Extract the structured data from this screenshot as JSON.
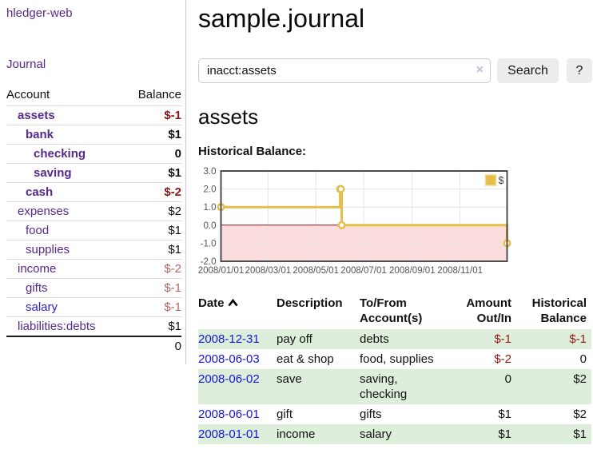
{
  "sidebar": {
    "brand": "hledger-web",
    "journal_link": "Journal",
    "accounts_table": {
      "headers": [
        "Account",
        "Balance"
      ],
      "rows": [
        {
          "account": "assets",
          "depth": 1,
          "bold": true,
          "balance": "$-1",
          "balance_style": "neg-strong"
        },
        {
          "account": "bank",
          "depth": 2,
          "bold": true,
          "balance": "$1",
          "balance_style": "pos"
        },
        {
          "account": "checking",
          "depth": 3,
          "bold": true,
          "balance": "0",
          "balance_style": "pos"
        },
        {
          "account": "saving",
          "depth": 3,
          "bold": true,
          "balance": "$1",
          "balance_style": "pos"
        },
        {
          "account": "cash",
          "depth": 2,
          "bold": true,
          "balance": "$-2",
          "balance_style": "neg-strong"
        },
        {
          "account": "expenses",
          "depth": 1,
          "bold": false,
          "balance": "$2",
          "balance_style": "pos"
        },
        {
          "account": "food",
          "depth": 2,
          "bold": false,
          "balance": "$1",
          "balance_style": "pos"
        },
        {
          "account": "supplies",
          "depth": 2,
          "bold": false,
          "balance": "$1",
          "balance_style": "pos"
        },
        {
          "account": "income",
          "depth": 1,
          "bold": false,
          "balance": "$-2",
          "balance_style": "neg-soft"
        },
        {
          "account": "gifts",
          "depth": 2,
          "bold": false,
          "balance": "$-1",
          "balance_style": "neg-soft"
        },
        {
          "account": "salary",
          "depth": 2,
          "bold": false,
          "balance": "$-1",
          "balance_style": "neg-soft",
          "link_color": "blue"
        },
        {
          "account": "liabilities:debts",
          "depth": 1,
          "bold": false,
          "balance": "$1",
          "balance_style": "pos"
        }
      ],
      "total": "0"
    }
  },
  "header": {
    "title": "sample.journal"
  },
  "search": {
    "query": "inacct:assets",
    "clear_icon": "×",
    "button_label": "Search",
    "help_label": "?"
  },
  "account_page": {
    "title": "assets",
    "chart_label": "Historical Balance:"
  },
  "chart_data": {
    "type": "line",
    "title": "Historical Balance",
    "step": true,
    "series": [
      {
        "name": "$",
        "color": "#e5bd49",
        "points": [
          {
            "date": "2008-01-01",
            "value": 1
          },
          {
            "date": "2008-06-01",
            "value": 2
          },
          {
            "date": "2008-06-02",
            "value": 2
          },
          {
            "date": "2008-06-03",
            "value": 0
          },
          {
            "date": "2008-12-31",
            "value": -1
          }
        ]
      }
    ],
    "x_range": [
      "2008-01-01",
      "2008-12-31"
    ],
    "x_ticks": [
      "2008/01/01",
      "2008/03/01",
      "2008/05/01",
      "2008/07/01",
      "2008/09/01",
      "2008/11/01"
    ],
    "y_ticks": [
      "3.0",
      "2.0",
      "1.0",
      "0.0",
      "-1.0",
      "-2.0"
    ],
    "ylim": [
      -2,
      3
    ],
    "legend_position": "top-right",
    "grid": true,
    "negative_region_color": "#fbdcdc",
    "zero_line_color": "#9c0f0f",
    "grid_color": "#e4e4e4",
    "border_color": "#4d4d4d"
  },
  "register_table": {
    "headers": [
      {
        "label": "Date",
        "align": "left",
        "sortable": true
      },
      {
        "label": "Description",
        "align": "left"
      },
      {
        "label": "To/From Account(s)",
        "align": "left"
      },
      {
        "label": "Amount Out/In",
        "align": "right"
      },
      {
        "label": "Historical Balance",
        "align": "right"
      }
    ],
    "rows": [
      {
        "date": "2008-12-31",
        "description": "pay off",
        "accounts": "debts",
        "amount": "$-1",
        "amount_negative": true,
        "balance": "$-1",
        "balance_negative": true
      },
      {
        "date": "2008-06-03",
        "description": "eat & shop",
        "accounts": "food, supplies",
        "amount": "$-2",
        "amount_negative": true,
        "balance": "0",
        "balance_negative": false
      },
      {
        "date": "2008-06-02",
        "description": "save",
        "accounts": "saving, checking",
        "amount": "0",
        "amount_negative": false,
        "balance": "$2",
        "balance_negative": false
      },
      {
        "date": "2008-06-01",
        "description": "gift",
        "accounts": "gifts",
        "amount": "$1",
        "amount_negative": false,
        "balance": "$2",
        "balance_negative": false
      },
      {
        "date": "2008-01-01",
        "description": "income",
        "accounts": "salary",
        "amount": "$1",
        "amount_negative": false,
        "balance": "$1",
        "balance_negative": false
      }
    ]
  },
  "colors": {
    "link_purple": "#55298f",
    "link_blue": "#1515d6",
    "negative_strong": "#8e1515",
    "negative_soft": "#b56262",
    "row_green": "#ddeeda",
    "button_bg": "#ececec",
    "series_gold": "#e5bd49"
  }
}
